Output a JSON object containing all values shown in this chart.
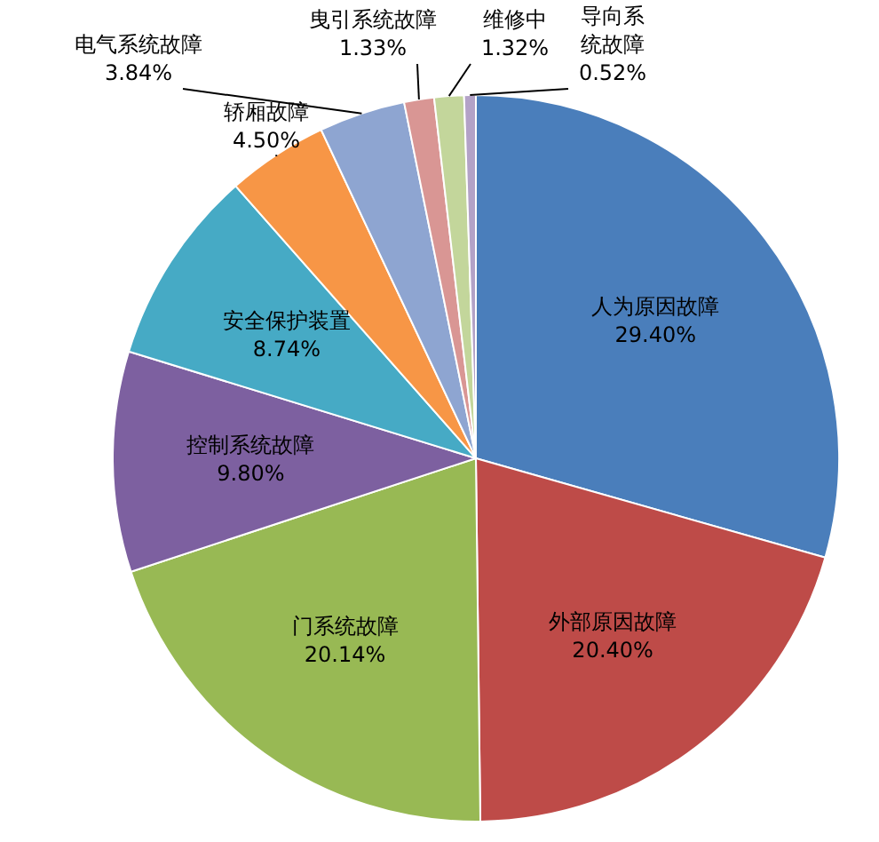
{
  "chart_data": {
    "type": "pie",
    "categories": [
      "人为原因故障",
      "外部原因故障",
      "门系统故障",
      "控制系统故障",
      "安全保护装置",
      "轿厢故障",
      "电气系统故障",
      "曳引系统故障",
      "维修中",
      "导向系统故障"
    ],
    "values": [
      29.4,
      20.4,
      20.14,
      9.8,
      8.74,
      4.5,
      3.84,
      1.33,
      1.32,
      0.52
    ],
    "value_labels": [
      "29.40%",
      "20.40%",
      "20.14%",
      "9.80%",
      "8.74%",
      "4.50%",
      "3.84%",
      "1.33%",
      "1.32%",
      "0.52%"
    ],
    "colors": [
      "#4a7ebb",
      "#be4b48",
      "#98b954",
      "#7d60a0",
      "#46aac5",
      "#f79646",
      "#8ea5d1",
      "#d99694",
      "#c3d69b",
      "#b3a2c7"
    ],
    "legend": false
  }
}
